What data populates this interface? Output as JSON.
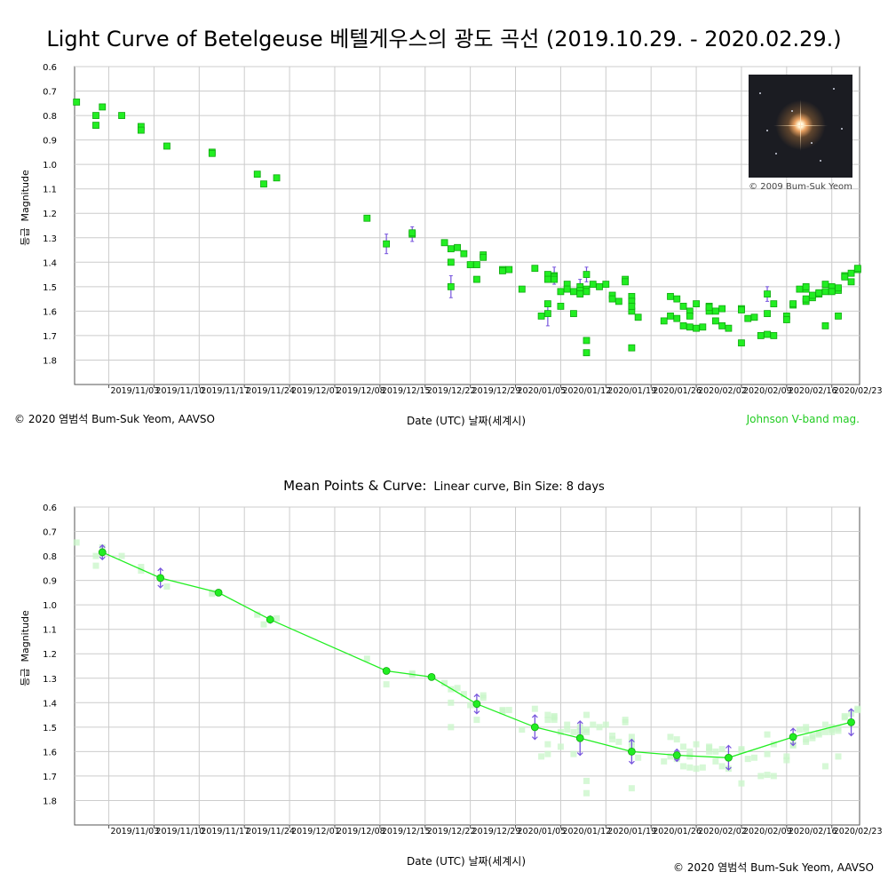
{
  "title": "Light Curve of Betelgeuse   베텔게우스의 광도 곡선 (2019.10.29. - 2020.02.29.)",
  "subtitle": "Mean Points & Curve:",
  "subtitle_detail": "Linear curve, Bin Size: 8 days",
  "copyright_top": "© 2020 염범석 Bum-Suk Yeom, AAVSO",
  "copyright_bottom": "© 2020 염범석 Bum-Suk Yeom, AAVSO",
  "band_label": "Johnson V-band mag.",
  "photo_credit": "© 2009 Bum-Suk Yeom",
  "xlabel": "Date (UTC)     날짜(세계시)",
  "ylabel_kr": "등급",
  "ylabel": "Magnitude",
  "colors": {
    "point": "#22ee22",
    "point_edge": "#11aa11",
    "errorbar": "#7755dd",
    "grid": "#cccccc",
    "line": "#22ee22"
  },
  "x_ticks": [
    "2019/11/03",
    "2019/11/10",
    "2019/11/17",
    "2019/11/24",
    "2019/12/01",
    "2019/12/08",
    "2019/12/15",
    "2019/12/22",
    "2019/12/29",
    "2020/01/05",
    "2020/01/12",
    "2020/01/19",
    "2020/01/26",
    "2020/02/02",
    "2020/02/09",
    "2020/02/16",
    "2020/02/23"
  ],
  "y_ticks": [
    "0.6",
    "0.7",
    "0.8",
    "0.9",
    "1.0",
    "1.1",
    "1.2",
    "1.3",
    "1.4",
    "1.5",
    "1.6",
    "1.7",
    "1.8"
  ],
  "chart_data": [
    {
      "type": "scatter",
      "title": "Light Curve of Betelgeuse   베텔게우스의 광도 곡선 (2019.10.29. - 2020.02.29.)",
      "xlabel": "Date (UTC)     날짜(세계시)",
      "ylabel": "Magnitude",
      "x_range": [
        "2019-10-29",
        "2020-02-27"
      ],
      "ylim": [
        0.6,
        1.9
      ],
      "y_inverted": true,
      "grid": true,
      "series": [
        {
          "points": [
            [
              "2019-10-29",
              0.745
            ],
            [
              "2019-11-01",
              0.8
            ],
            [
              "2019-11-01",
              0.84
            ],
            [
              "2019-11-02",
              0.765
            ],
            [
              "2019-11-05",
              0.8
            ],
            [
              "2019-11-08",
              0.845
            ],
            [
              "2019-11-08",
              0.86
            ],
            [
              "2019-11-12",
              0.925
            ],
            [
              "2019-11-19",
              0.95
            ],
            [
              "2019-11-19",
              0.955
            ],
            [
              "2019-11-26",
              1.04
            ],
            [
              "2019-11-27",
              1.08
            ],
            [
              "2019-11-29",
              1.055
            ],
            [
              "2019-12-13",
              1.22
            ],
            [
              "2019-12-16",
              1.325
            ],
            [
              "2019-12-20",
              1.285
            ],
            [
              "2019-12-20",
              1.28
            ],
            [
              "2019-12-25",
              1.32
            ],
            [
              "2019-12-26",
              1.4
            ],
            [
              "2019-12-26",
              1.5
            ],
            [
              "2019-12-26",
              1.345
            ],
            [
              "2019-12-27",
              1.34
            ],
            [
              "2019-12-28",
              1.365
            ],
            [
              "2019-12-29",
              1.41
            ],
            [
              "2019-12-30",
              1.41
            ],
            [
              "2019-12-30",
              1.47
            ],
            [
              "2019-12-31",
              1.37
            ],
            [
              "2019-12-31",
              1.38
            ],
            [
              "2020-01-03",
              1.43
            ],
            [
              "2020-01-03",
              1.435
            ],
            [
              "2020-01-04",
              1.43
            ],
            [
              "2020-01-06",
              1.51
            ],
            [
              "2020-01-08",
              1.425
            ],
            [
              "2020-01-09",
              1.62
            ],
            [
              "2020-01-10",
              1.45
            ],
            [
              "2020-01-10",
              1.47
            ],
            [
              "2020-01-10",
              1.61
            ],
            [
              "2020-01-10",
              1.57
            ],
            [
              "2020-01-11",
              1.455
            ],
            [
              "2020-01-11",
              1.46
            ],
            [
              "2020-01-11",
              1.47
            ],
            [
              "2020-01-12",
              1.58
            ],
            [
              "2020-01-12",
              1.52
            ],
            [
              "2020-01-13",
              1.49
            ],
            [
              "2020-01-13",
              1.51
            ],
            [
              "2020-01-14",
              1.52
            ],
            [
              "2020-01-14",
              1.61
            ],
            [
              "2020-01-15",
              1.5
            ],
            [
              "2020-01-15",
              1.515
            ],
            [
              "2020-01-15",
              1.53
            ],
            [
              "2020-01-16",
              1.77
            ],
            [
              "2020-01-16",
              1.45
            ],
            [
              "2020-01-16",
              1.51
            ],
            [
              "2020-01-16",
              1.72
            ],
            [
              "2020-01-16",
              1.52
            ],
            [
              "2020-01-17",
              1.49
            ],
            [
              "2020-01-18",
              1.5
            ],
            [
              "2020-01-19",
              1.49
            ],
            [
              "2020-01-20",
              1.535
            ],
            [
              "2020-01-20",
              1.55
            ],
            [
              "2020-01-21",
              1.56
            ],
            [
              "2020-01-22",
              1.47
            ],
            [
              "2020-01-22",
              1.48
            ],
            [
              "2020-01-23",
              1.6
            ],
            [
              "2020-01-23",
              1.75
            ],
            [
              "2020-01-23",
              1.54
            ],
            [
              "2020-01-23",
              1.56
            ],
            [
              "2020-01-23",
              1.58
            ],
            [
              "2020-01-24",
              1.625
            ],
            [
              "2020-01-28",
              1.64
            ],
            [
              "2020-01-29",
              1.54
            ],
            [
              "2020-01-29",
              1.62
            ],
            [
              "2020-01-30",
              1.55
            ],
            [
              "2020-01-30",
              1.63
            ],
            [
              "2020-01-31",
              1.58
            ],
            [
              "2020-01-31",
              1.66
            ],
            [
              "2020-02-01",
              1.6
            ],
            [
              "2020-02-01",
              1.62
            ],
            [
              "2020-02-01",
              1.665
            ],
            [
              "2020-02-02",
              1.57
            ],
            [
              "2020-02-02",
              1.67
            ],
            [
              "2020-02-03",
              1.665
            ],
            [
              "2020-02-04",
              1.58
            ],
            [
              "2020-02-04",
              1.6
            ],
            [
              "2020-02-04",
              1.585
            ],
            [
              "2020-02-05",
              1.6
            ],
            [
              "2020-02-05",
              1.64
            ],
            [
              "2020-02-06",
              1.66
            ],
            [
              "2020-02-06",
              1.59
            ],
            [
              "2020-02-07",
              1.67
            ],
            [
              "2020-02-09",
              1.59
            ],
            [
              "2020-02-09",
              1.595
            ],
            [
              "2020-02-09",
              1.73
            ],
            [
              "2020-02-10",
              1.63
            ],
            [
              "2020-02-11",
              1.625
            ],
            [
              "2020-02-12",
              1.7
            ],
            [
              "2020-02-13",
              1.53
            ],
            [
              "2020-02-13",
              1.695
            ],
            [
              "2020-02-13",
              1.61
            ],
            [
              "2020-02-14",
              1.7
            ],
            [
              "2020-02-14",
              1.57
            ],
            [
              "2020-02-16",
              1.62
            ],
            [
              "2020-02-16",
              1.635
            ],
            [
              "2020-02-17",
              1.575
            ],
            [
              "2020-02-17",
              1.57
            ],
            [
              "2020-02-18",
              1.51
            ],
            [
              "2020-02-19",
              1.51
            ],
            [
              "2020-02-19",
              1.56
            ],
            [
              "2020-02-19",
              1.55
            ],
            [
              "2020-02-19",
              1.5
            ],
            [
              "2020-02-20",
              1.545
            ],
            [
              "2020-02-20",
              1.535
            ],
            [
              "2020-02-21",
              1.53
            ],
            [
              "2020-02-21",
              1.525
            ],
            [
              "2020-02-22",
              1.49
            ],
            [
              "2020-02-22",
              1.52
            ],
            [
              "2020-02-22",
              1.66
            ],
            [
              "2020-02-23",
              1.51
            ],
            [
              "2020-02-23",
              1.5
            ],
            [
              "2020-02-23",
              1.52
            ],
            [
              "2020-02-24",
              1.515
            ],
            [
              "2020-02-24",
              1.505
            ],
            [
              "2020-02-24",
              1.62
            ],
            [
              "2020-02-25",
              1.455
            ],
            [
              "2020-02-25",
              1.46
            ],
            [
              "2020-02-26",
              1.48
            ],
            [
              "2020-02-26",
              1.445
            ],
            [
              "2020-02-27",
              1.43
            ],
            [
              "2020-02-27",
              1.425
            ]
          ]
        }
      ],
      "error_bars": [
        [
          "2019-12-16",
          1.325,
          0.04
        ],
        [
          "2019-12-20",
          1.285,
          0.03
        ],
        [
          "2019-12-26",
          1.5,
          0.045
        ],
        [
          "2020-01-10",
          1.61,
          0.05
        ],
        [
          "2020-01-11",
          1.455,
          0.035
        ],
        [
          "2020-01-15",
          1.5,
          0.03
        ],
        [
          "2020-01-16",
          1.45,
          0.03
        ],
        [
          "2020-02-13",
          1.53,
          0.03
        ]
      ]
    },
    {
      "type": "line",
      "title": "Mean Points & Curve:",
      "subtitle": "Linear curve, Bin Size: 8 days",
      "xlabel": "Date (UTC)     날짜(세계시)",
      "ylabel": "Magnitude",
      "x_range": [
        "2019-10-29",
        "2020-02-27"
      ],
      "ylim": [
        0.6,
        1.9
      ],
      "y_inverted": true,
      "grid": true,
      "series": [
        {
          "points": [
            [
              "2019-11-02",
              0.785
            ],
            [
              "2019-11-11",
              0.89
            ],
            [
              "2019-11-20",
              0.95
            ],
            [
              "2019-11-28",
              1.06
            ],
            [
              "2019-12-16",
              1.27
            ],
            [
              "2019-12-23",
              1.295
            ],
            [
              "2019-12-30",
              1.405
            ],
            [
              "2020-01-08",
              1.5
            ],
            [
              "2020-01-15",
              1.545
            ],
            [
              "2020-01-23",
              1.6
            ],
            [
              "2020-01-30",
              1.615
            ],
            [
              "2020-02-07",
              1.625
            ],
            [
              "2020-02-17",
              1.54
            ],
            [
              "2020-02-26",
              1.48
            ]
          ],
          "errors": [
            0.03,
            0.04,
            0,
            0.015,
            0,
            0,
            0.04,
            0.05,
            0.07,
            0.05,
            0.025,
            0.05,
            0.035,
            0.055
          ]
        }
      ]
    }
  ]
}
